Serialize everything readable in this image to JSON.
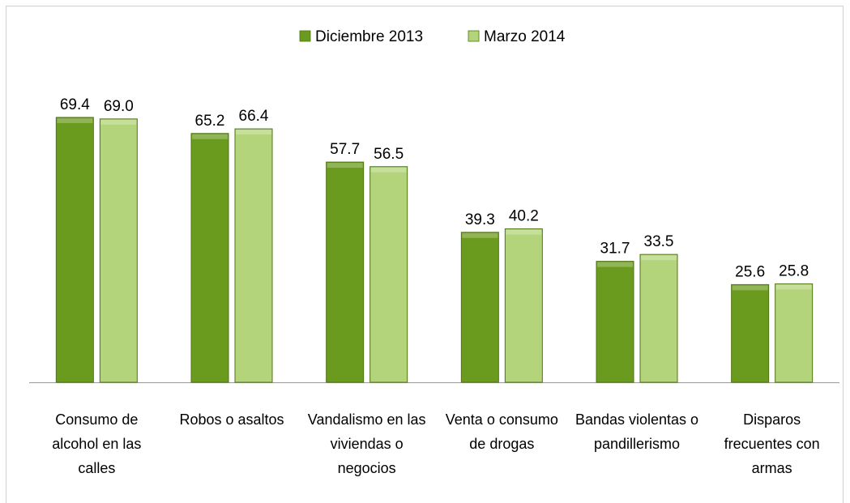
{
  "chart_data": {
    "type": "bar",
    "categories": [
      "Consumo de alcohol en las calles",
      "Robos o asaltos",
      "Vandalismo en las viviendas o negocios",
      "Venta o consumo de drogas",
      "Bandas violentas o pandillerismo",
      "Disparos frecuentes con armas"
    ],
    "series": [
      {
        "name": "Diciembre 2013",
        "color": "#6b9b1e",
        "values": [
          69.4,
          65.2,
          57.7,
          39.3,
          31.7,
          25.6
        ],
        "value_labels": [
          "69.4",
          "65.2",
          "57.7",
          "39.3",
          "31.7",
          "25.6"
        ]
      },
      {
        "name": "Marzo 2014",
        "color": "#b3d47a",
        "values": [
          69.0,
          66.4,
          56.5,
          40.2,
          33.5,
          25.8
        ],
        "value_labels": [
          "69.0",
          "66.4",
          "56.5",
          "40.2",
          "33.5",
          "25.8"
        ]
      }
    ],
    "ylim": [
      0,
      80
    ],
    "legend": "top"
  }
}
